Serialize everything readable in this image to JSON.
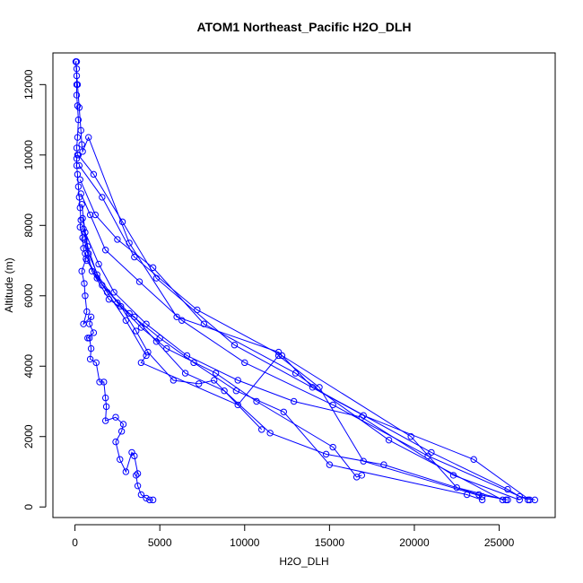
{
  "chart_data": {
    "type": "scatter",
    "title": "ATOM1 Northeast_Pacific H2O_DLH",
    "xlabel": "H2O_DLH",
    "ylabel": "Altitude (m)",
    "xlim": [
      -1300,
      28300
    ],
    "ylim": [
      -300,
      12900
    ],
    "xticks": [
      0,
      5000,
      10000,
      15000,
      20000,
      25000
    ],
    "xtick_labels": [
      "0",
      "5000",
      "10000",
      "15000",
      "20000",
      "25000"
    ],
    "yticks": [
      0,
      2000,
      4000,
      6000,
      8000,
      10000,
      12000
    ],
    "ytick_labels": [
      "0",
      "2000",
      "4000",
      "6000",
      "8000",
      "10000",
      "12000"
    ],
    "grid": false,
    "color": "#0000ff",
    "marker": "open-circle",
    "connect_points": true,
    "series": [
      {
        "values": [
          [
            4600,
            200
          ],
          [
            4400,
            200
          ],
          [
            4200,
            250
          ],
          [
            3900,
            350
          ],
          [
            3700,
            600
          ],
          [
            3600,
            900
          ],
          [
            3700,
            950
          ],
          [
            3500,
            1450
          ],
          [
            3350,
            1550
          ],
          [
            3000,
            1000
          ],
          [
            2650,
            1350
          ],
          [
            2400,
            1850
          ],
          [
            2750,
            2150
          ],
          [
            2850,
            2350
          ],
          [
            2400,
            2550
          ],
          [
            1800,
            2450
          ],
          [
            1850,
            2850
          ],
          [
            1800,
            3100
          ],
          [
            1700,
            3550
          ],
          [
            1450,
            3550
          ],
          [
            1250,
            4100
          ],
          [
            900,
            4200
          ],
          [
            950,
            4500
          ],
          [
            850,
            4800
          ],
          [
            750,
            4800
          ],
          [
            1100,
            4950
          ],
          [
            850,
            5200
          ],
          [
            950,
            5400
          ],
          [
            500,
            5200
          ],
          [
            700,
            5550
          ],
          [
            600,
            6000
          ],
          [
            550,
            6350
          ],
          [
            400,
            6700
          ],
          [
            650,
            7050
          ],
          [
            500,
            7350
          ],
          [
            450,
            7650
          ],
          [
            300,
            7950
          ],
          [
            350,
            8150
          ],
          [
            300,
            8500
          ],
          [
            250,
            8800
          ],
          [
            200,
            9100
          ],
          [
            150,
            9450
          ],
          [
            100,
            9700
          ],
          [
            100,
            9900
          ],
          [
            150,
            10000
          ],
          [
            100,
            10200
          ],
          [
            150,
            10500
          ],
          [
            200,
            11000
          ],
          [
            150,
            11400
          ],
          [
            100,
            11700
          ],
          [
            100,
            12000
          ],
          [
            100,
            12250
          ],
          [
            100,
            12450
          ],
          [
            50,
            12650
          ],
          [
            100,
            12650
          ]
        ]
      },
      {
        "values": [
          [
            50,
            12650
          ],
          [
            150,
            12000
          ],
          [
            250,
            11350
          ],
          [
            350,
            10700
          ],
          [
            400,
            10300
          ],
          [
            450,
            10100
          ],
          [
            800,
            10500
          ],
          [
            3200,
            7500
          ],
          [
            6000,
            5400
          ],
          [
            12000,
            4400
          ],
          [
            14000,
            3400
          ],
          [
            21000,
            1550
          ],
          [
            25500,
            500
          ],
          [
            26200,
            300
          ],
          [
            27100,
            200
          ]
        ]
      },
      {
        "values": [
          [
            200,
            10000
          ],
          [
            1100,
            9450
          ],
          [
            2800,
            8100
          ],
          [
            4800,
            6500
          ],
          [
            9400,
            4600
          ],
          [
            17000,
            2600
          ],
          [
            23500,
            1350
          ],
          [
            26800,
            200
          ]
        ]
      },
      {
        "values": [
          [
            250,
            9700
          ],
          [
            1600,
            8800
          ],
          [
            3500,
            7100
          ],
          [
            7200,
            5600
          ],
          [
            12200,
            4300
          ],
          [
            19800,
            2000
          ],
          [
            22500,
            550
          ],
          [
            25400,
            200
          ]
        ]
      },
      {
        "values": [
          [
            300,
            9300
          ],
          [
            1200,
            8300
          ],
          [
            2500,
            7600
          ],
          [
            4600,
            6800
          ],
          [
            7600,
            5200
          ],
          [
            13000,
            3800
          ],
          [
            18500,
            1900
          ],
          [
            25200,
            200
          ]
        ]
      },
      {
        "values": [
          [
            350,
            8900
          ],
          [
            900,
            8300
          ],
          [
            1800,
            7300
          ],
          [
            3800,
            6400
          ],
          [
            6300,
            5300
          ],
          [
            10000,
            4100
          ],
          [
            15200,
            2900
          ],
          [
            20800,
            1450
          ],
          [
            26700,
            200
          ]
        ]
      },
      {
        "values": [
          [
            400,
            8600
          ],
          [
            600,
            7800
          ],
          [
            1400,
            6900
          ],
          [
            2300,
            6100
          ],
          [
            4200,
            5200
          ],
          [
            6600,
            4300
          ],
          [
            9600,
            3600
          ],
          [
            12900,
            3000
          ],
          [
            16900,
            2550
          ],
          [
            22300,
            900
          ],
          [
            26200,
            200
          ]
        ]
      },
      {
        "values": [
          [
            450,
            8200
          ],
          [
            750,
            7400
          ],
          [
            1300,
            6600
          ],
          [
            2500,
            5800
          ],
          [
            3900,
            5100
          ],
          [
            5400,
            4500
          ],
          [
            8300,
            3800
          ],
          [
            10700,
            3000
          ],
          [
            15200,
            1700
          ],
          [
            16600,
            850
          ],
          [
            16900,
            900
          ]
        ]
      },
      {
        "values": [
          [
            500,
            7900
          ],
          [
            800,
            7200
          ],
          [
            1600,
            6300
          ],
          [
            3200,
            5500
          ],
          [
            5000,
            4800
          ],
          [
            7000,
            4100
          ],
          [
            9500,
            3300
          ],
          [
            12300,
            2700
          ],
          [
            15000,
            1200
          ],
          [
            23100,
            350
          ],
          [
            24000,
            200
          ]
        ]
      },
      {
        "values": [
          [
            550,
            7600
          ],
          [
            1000,
            6700
          ],
          [
            2000,
            5900
          ],
          [
            3500,
            5400
          ],
          [
            4800,
            4700
          ],
          [
            6500,
            3800
          ],
          [
            8800,
            3300
          ],
          [
            11500,
            2100
          ],
          [
            14800,
            1500
          ],
          [
            18200,
            1200
          ],
          [
            23800,
            350
          ],
          [
            25500,
            200
          ]
        ]
      },
      {
        "values": [
          [
            600,
            7200
          ],
          [
            1300,
            6500
          ],
          [
            2700,
            5700
          ],
          [
            3600,
            5000
          ],
          [
            4300,
            4400
          ],
          [
            5800,
            3600
          ],
          [
            7300,
            3500
          ],
          [
            8200,
            3600
          ],
          [
            11000,
            2200
          ]
        ]
      },
      {
        "values": [
          [
            700,
            7000
          ],
          [
            1900,
            6100
          ],
          [
            3000,
            5300
          ],
          [
            4200,
            4300
          ],
          [
            3900,
            4100
          ],
          [
            9600,
            2900
          ],
          [
            12000,
            4300
          ],
          [
            14400,
            3400
          ],
          [
            17000,
            1300
          ],
          [
            24000,
            300
          ]
        ]
      }
    ]
  }
}
